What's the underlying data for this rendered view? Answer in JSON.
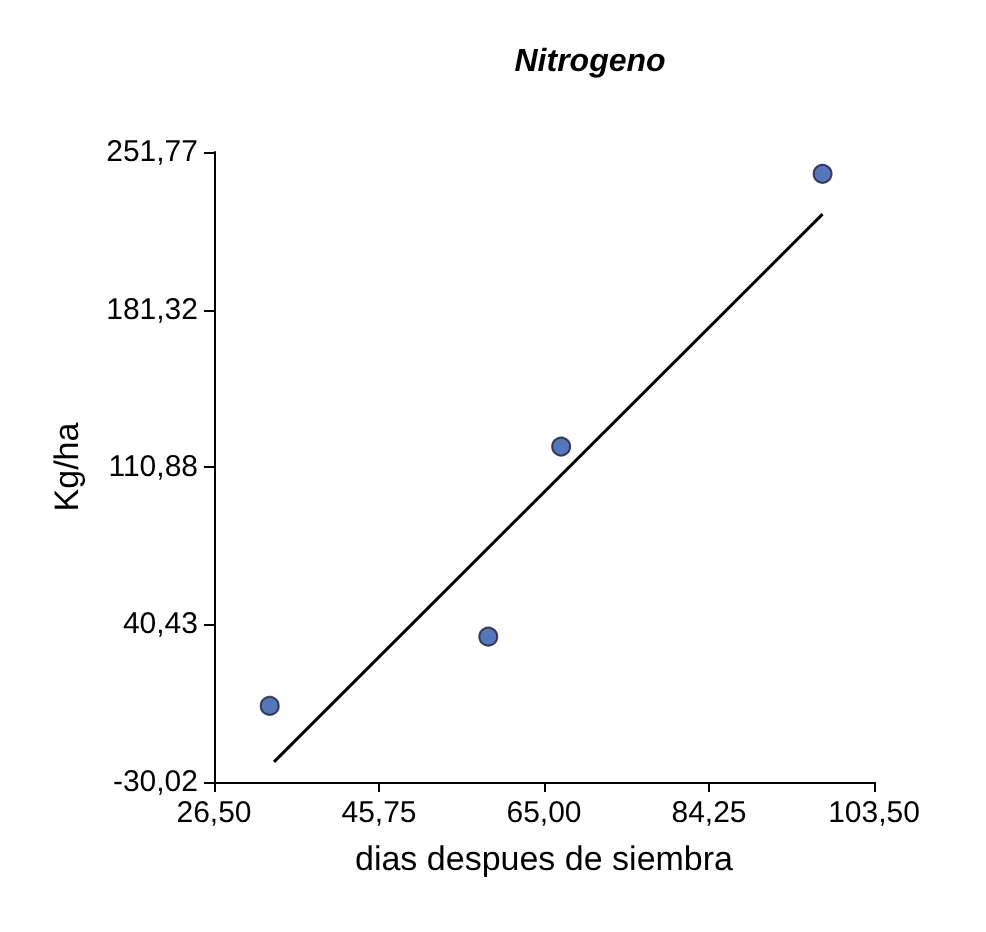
{
  "chart_data": {
    "type": "scatter",
    "title": "Nitrogeno",
    "xlabel": "dias despues de siembra",
    "ylabel": "Kg/ha",
    "xlim": [
      26.5,
      103.5
    ],
    "xticks": [
      {
        "value": 26.5,
        "label": "26,50"
      },
      {
        "value": 45.75,
        "label": "45,75"
      },
      {
        "value": 65,
        "label": "65,00"
      },
      {
        "value": 84.25,
        "label": "84,25"
      },
      {
        "value": 103.5,
        "label": "103,50"
      }
    ],
    "ylim": [
      -30.02,
      251.77
    ],
    "yticks": [
      {
        "value": -30.02,
        "label": "-30,02"
      },
      {
        "value": 40.43,
        "label": "40,43"
      },
      {
        "value": 110.88,
        "label": "110,88"
      },
      {
        "value": 181.32,
        "label": "181,32"
      },
      {
        "value": 251.77,
        "label": "251,77"
      }
    ],
    "grid": false,
    "marker": "circle",
    "series": [
      {
        "color": "#2b55a8",
        "x": [
          33,
          58.5,
          67,
          97.5
        ],
        "values": [
          4,
          35,
          120,
          242
        ]
      },
      {
        "type": "line",
        "color": "#000000",
        "marker": "none",
        "line_style": "solid",
        "x": [
          33.5,
          97.5
        ],
        "values": [
          -21,
          224
        ]
      }
    ]
  }
}
